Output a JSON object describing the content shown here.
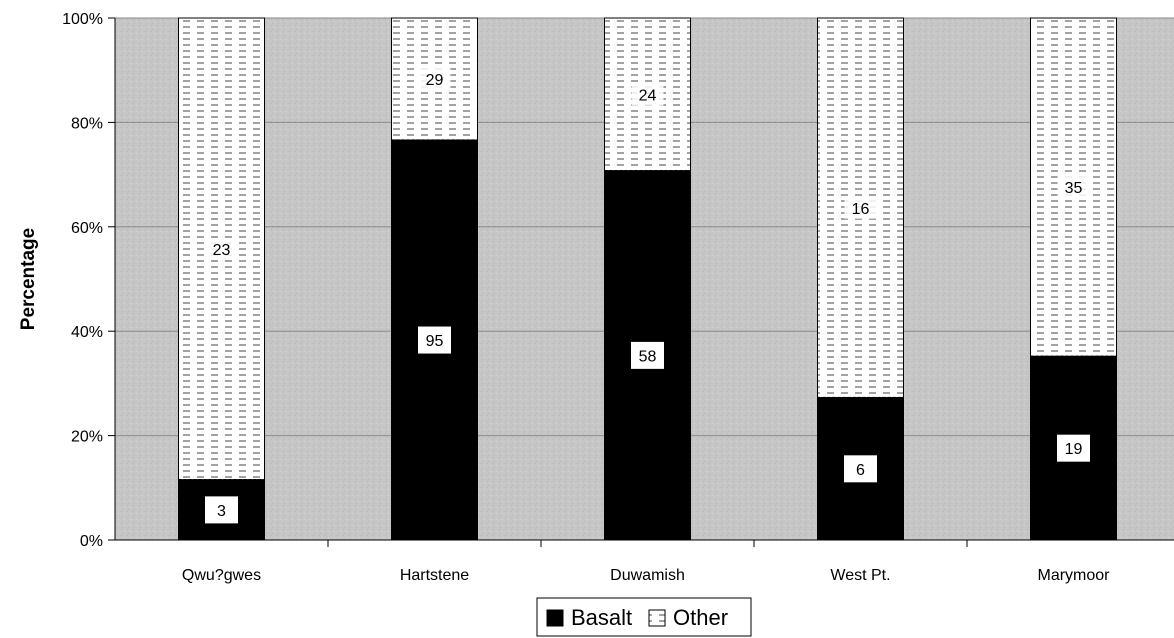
{
  "chart_data": {
    "type": "bar",
    "stacked": true,
    "normalized": true,
    "categories": [
      "Qwu?gwes",
      "Hartstene",
      "Duwamish",
      "West Pt.",
      "Marymoor"
    ],
    "series": [
      {
        "name": "Basalt",
        "values": [
          3,
          95,
          58,
          6,
          19
        ],
        "color": "#000000",
        "pattern": "solid"
      },
      {
        "name": "Other",
        "values": [
          23,
          29,
          24,
          16,
          35
        ],
        "color": "#ffffff",
        "pattern": "dashed-hatch"
      }
    ],
    "title": "",
    "xlabel": "",
    "ylabel": "Percentage",
    "ylim": [
      0,
      100
    ],
    "yticks": [
      "0%",
      "20%",
      "40%",
      "60%",
      "80%",
      "100%"
    ],
    "grid": true,
    "legend": "bottom-center",
    "plot_background": "#c8c8c8"
  }
}
